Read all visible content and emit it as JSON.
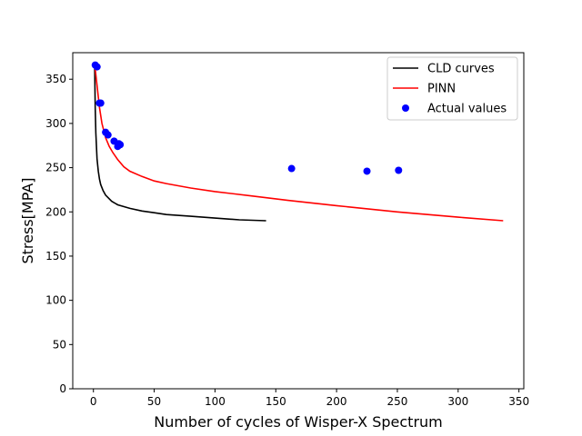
{
  "chart_data": {
    "type": "line",
    "title": "",
    "xlabel": "Number of cycles of Wisper-X Spectrum",
    "ylabel": "Stress[MPA]",
    "xlim": [
      -17,
      354
    ],
    "ylim": [
      0,
      380
    ],
    "xticks": [
      0,
      50,
      100,
      150,
      200,
      250,
      300,
      350
    ],
    "yticks": [
      0,
      50,
      100,
      150,
      200,
      250,
      300,
      350
    ],
    "grid": false,
    "legend_position": "top-right",
    "series": [
      {
        "name": "CLD curves",
        "kind": "line",
        "color": "#000000",
        "x": [
          1,
          1.5,
          2,
          3,
          4,
          5,
          6,
          8,
          10,
          15,
          20,
          30,
          40,
          50,
          60,
          80,
          100,
          120,
          142
        ],
        "y": [
          365,
          318,
          289,
          260,
          246,
          237,
          231,
          224,
          219,
          212,
          208,
          204,
          201,
          199,
          197,
          195,
          193,
          191,
          190
        ]
      },
      {
        "name": "PINN",
        "kind": "line",
        "color": "#ff0000",
        "x": [
          1,
          2,
          3,
          5,
          7,
          10,
          13,
          16,
          20,
          25,
          30,
          40,
          50,
          60,
          80,
          100,
          130,
          160,
          200,
          250,
          300,
          337
        ],
        "y": [
          367,
          355,
          343,
          318,
          300,
          284,
          274,
          267,
          259,
          251,
          246,
          240,
          235,
          232,
          227,
          223,
          218,
          213,
          207,
          200,
          194,
          190
        ]
      },
      {
        "name": "Actual values",
        "kind": "scatter",
        "color": "#0000ff",
        "x": [
          1.5,
          3,
          5,
          6,
          10,
          12,
          17,
          20,
          22,
          21,
          163,
          225,
          251
        ],
        "y": [
          366,
          364,
          323,
          323,
          290,
          287,
          280,
          274,
          276,
          277,
          249,
          246,
          247
        ]
      }
    ]
  }
}
